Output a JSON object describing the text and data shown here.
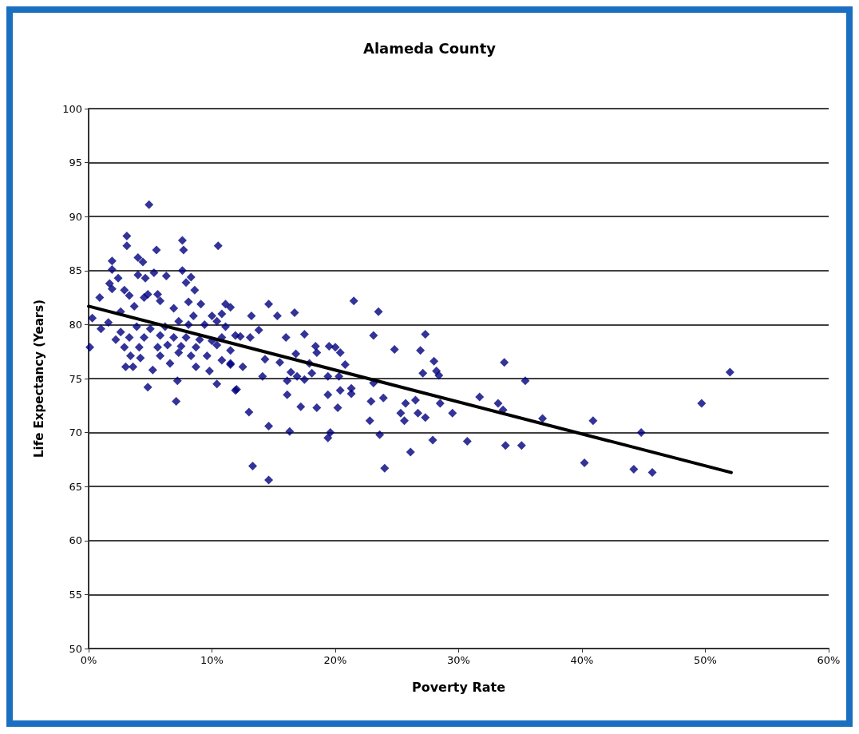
{
  "chart_data": {
    "type": "scatter",
    "title": "Alameda County",
    "xlabel": "Poverty Rate",
    "ylabel": "Life Expectancy (Years)",
    "xlim": [
      0,
      60
    ],
    "xticks": [
      {
        "value": 0,
        "label": "0%"
      },
      {
        "value": 10,
        "label": "10%"
      },
      {
        "value": 20,
        "label": "20%"
      },
      {
        "value": 30,
        "label": "30%"
      },
      {
        "value": 40,
        "label": "40%"
      },
      {
        "value": 50,
        "label": "50%"
      },
      {
        "value": 60,
        "label": "60%"
      }
    ],
    "ylim": [
      50,
      100
    ],
    "yticks": [
      50,
      55,
      60,
      65,
      70,
      75,
      80,
      85,
      90,
      95,
      100
    ],
    "grid": "y",
    "series": [
      {
        "marker": "diamond",
        "color": "#000080",
        "x": [
          33.7,
          35.4,
          31.7,
          33.2,
          33.6,
          36.8,
          40.9,
          44.8,
          49.7,
          52.0,
          33.8,
          35.1,
          40.2,
          44.2,
          45.7,
          21.5,
          23.5,
          14.6,
          13.2,
          15.3,
          16.7,
          13.8,
          12.3,
          13.1,
          16.0,
          17.5,
          23.1,
          27.3,
          24.8,
          26.9,
          28.0,
          28.2,
          27.1,
          28.4,
          18.4,
          19.5,
          20.0,
          18.5,
          20.4,
          20.8,
          16.8,
          17.9,
          15.5,
          14.3,
          12.5,
          11.5,
          16.4,
          18.1,
          14.1,
          16.9,
          19.4,
          20.3,
          16.1,
          17.5,
          23.1,
          12.0,
          16.1,
          19.4,
          20.4,
          21.3,
          21.3,
          22.9,
          23.9,
          25.7,
          26.5,
          28.5,
          17.2,
          18.5,
          20.2,
          25.3,
          26.7,
          25.6,
          27.3,
          29.5,
          13.0,
          22.8,
          14.6,
          16.3,
          19.4,
          19.6,
          23.6,
          27.9,
          30.7,
          26.1,
          13.3,
          24.0,
          14.6,
          4.9,
          3.1,
          3.1,
          5.5,
          7.6,
          7.7,
          10.5,
          1.9,
          1.9,
          4.0,
          4.4,
          4.0,
          5.3,
          4.6,
          6.3,
          7.6,
          8.3,
          7.9,
          2.4,
          1.7,
          1.9,
          8.6,
          0.9,
          2.9,
          3.3,
          4.8,
          5.6,
          8.1,
          9.1,
          11.1,
          11.5,
          0.3,
          0.1,
          1.6,
          1.0,
          2.6,
          3.7,
          4.5,
          5.8,
          6.9,
          8.5,
          10.0,
          10.8,
          2.6,
          3.9,
          5.0,
          6.2,
          7.3,
          8.1,
          9.4,
          10.4,
          11.1,
          2.2,
          3.3,
          4.5,
          5.8,
          6.9,
          7.9,
          9.0,
          10.0,
          10.8,
          11.9,
          2.9,
          4.1,
          5.6,
          6.4,
          7.5,
          8.7,
          10.4,
          11.5,
          3.4,
          4.2,
          5.8,
          7.3,
          8.3,
          9.6,
          10.8,
          11.5,
          3.0,
          3.6,
          5.2,
          6.6,
          8.7,
          9.8,
          10.4,
          11.9,
          7.2,
          4.8,
          7.1
        ],
        "values": [
          76.5,
          74.8,
          73.3,
          72.7,
          72.1,
          71.3,
          71.1,
          70.0,
          72.7,
          75.6,
          68.8,
          68.8,
          67.2,
          66.6,
          66.3,
          82.2,
          81.2,
          81.9,
          80.8,
          80.8,
          81.1,
          79.5,
          78.9,
          78.8,
          78.8,
          79.1,
          79.0,
          79.1,
          77.7,
          77.6,
          76.6,
          75.7,
          75.5,
          75.3,
          78.0,
          78.0,
          77.9,
          77.4,
          77.4,
          76.3,
          77.3,
          76.4,
          76.5,
          76.8,
          76.1,
          76.3,
          75.6,
          75.5,
          75.2,
          75.2,
          75.2,
          75.2,
          74.8,
          74.9,
          74.6,
          74.0,
          73.5,
          73.5,
          73.9,
          74.1,
          73.6,
          72.9,
          73.2,
          72.7,
          73.0,
          72.7,
          72.4,
          72.3,
          72.3,
          71.8,
          71.8,
          71.1,
          71.4,
          71.8,
          71.9,
          71.1,
          70.6,
          70.1,
          69.5,
          70.0,
          69.8,
          69.3,
          69.2,
          68.2,
          66.9,
          66.7,
          65.6,
          91.1,
          88.2,
          87.3,
          86.9,
          87.8,
          86.9,
          87.3,
          85.9,
          85.1,
          86.2,
          85.8,
          84.6,
          84.8,
          84.3,
          84.5,
          85.0,
          84.4,
          83.9,
          84.3,
          83.8,
          83.3,
          83.2,
          82.5,
          83.2,
          82.7,
          82.8,
          82.8,
          82.1,
          81.9,
          81.9,
          81.6,
          80.6,
          77.9,
          80.2,
          79.6,
          81.2,
          81.7,
          82.5,
          82.2,
          81.5,
          80.8,
          80.8,
          81.0,
          79.3,
          79.8,
          79.6,
          79.8,
          80.3,
          80.0,
          80.0,
          80.3,
          79.8,
          78.6,
          78.8,
          78.8,
          79.0,
          78.8,
          78.8,
          78.6,
          78.5,
          78.8,
          79.0,
          77.9,
          77.9,
          77.9,
          78.1,
          78.0,
          77.9,
          78.1,
          77.6,
          77.1,
          76.9,
          77.1,
          77.4,
          77.1,
          77.1,
          76.7,
          76.4,
          76.1,
          76.1,
          75.8,
          76.4,
          76.1,
          75.7,
          74.5,
          73.9,
          74.8,
          74.2,
          72.9
        ]
      },
      {
        "type": "line",
        "marker": "none",
        "color": "#000000",
        "x": [
          0,
          52.1
        ],
        "values": [
          81.7,
          66.3
        ]
      }
    ]
  }
}
